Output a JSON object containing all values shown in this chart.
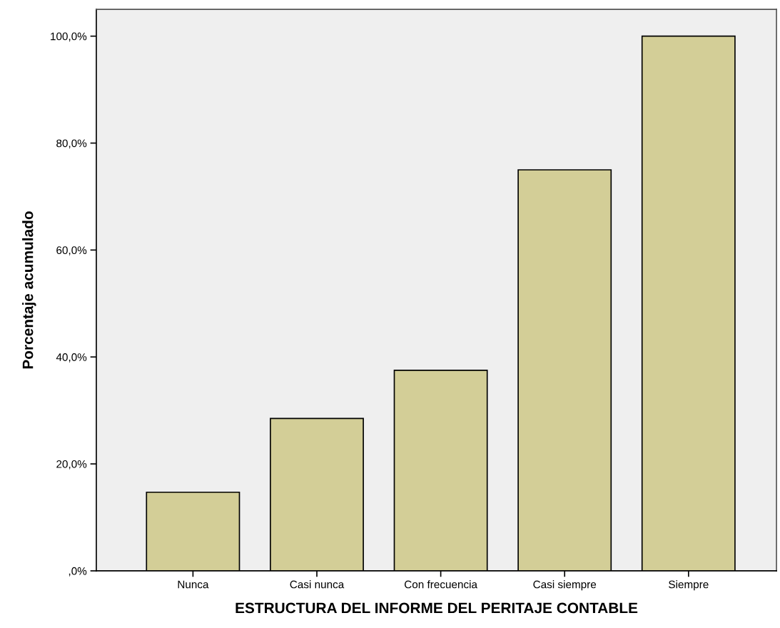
{
  "chart_data": {
    "type": "bar",
    "xlabel": "ESTRUCTURA DEL INFORME DEL PERITAJE CONTABLE",
    "ylabel": "Porcentaje acumulado",
    "categories": [
      "Nunca",
      "Casi nunca",
      "Con frecuencia",
      "Casi siempre",
      "Siempre"
    ],
    "values": [
      14.7,
      28.5,
      37.5,
      75.0,
      100.0
    ],
    "color": "#d3ce97",
    "ylim": [
      0,
      105
    ],
    "yticks": [
      {
        "value": 0,
        "label": ",0%"
      },
      {
        "value": 20,
        "label": "20,0%"
      },
      {
        "value": 40,
        "label": "40,0%"
      },
      {
        "value": 60,
        "label": "60,0%"
      },
      {
        "value": 80,
        "label": "80,0%"
      },
      {
        "value": 100,
        "label": "100,0%"
      }
    ],
    "grid": false
  }
}
